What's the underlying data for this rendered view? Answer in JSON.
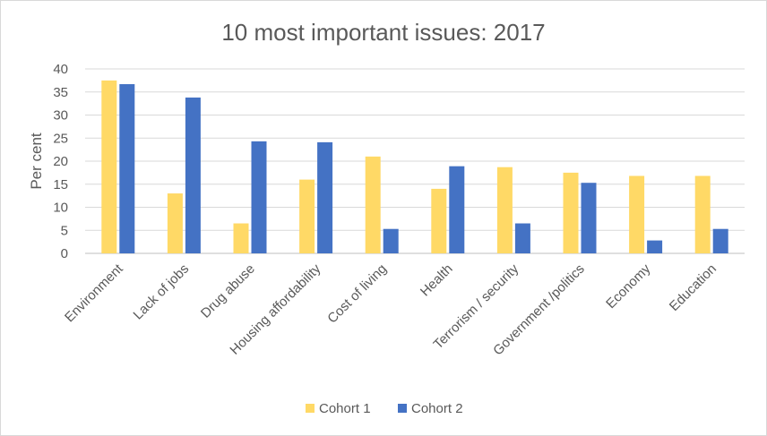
{
  "chart_data": {
    "type": "bar",
    "title": "10 most important issues: 2017",
    "xlabel": "",
    "ylabel": "Per cent",
    "ylim": [
      0,
      40
    ],
    "yticks": [
      0,
      5,
      10,
      15,
      20,
      25,
      30,
      35,
      40
    ],
    "grid": true,
    "legend": "bottom",
    "categories": [
      "Environment",
      "Lack of jobs",
      "Drug abuse",
      "Housing affordability",
      "Cost of living",
      "Health",
      "Terrorism / security",
      "Government /politics",
      "Economy",
      "Education"
    ],
    "series": [
      {
        "name": "Cohort 1",
        "color": "#FFD966",
        "values": [
          37.5,
          13,
          6.5,
          16,
          21,
          14,
          18.7,
          17.5,
          16.8,
          16.8
        ]
      },
      {
        "name": "Cohort 2",
        "color": "#4472C4",
        "values": [
          36.7,
          33.8,
          24.3,
          24.1,
          5.3,
          18.9,
          6.5,
          15.3,
          2.8,
          5.3
        ]
      }
    ]
  }
}
